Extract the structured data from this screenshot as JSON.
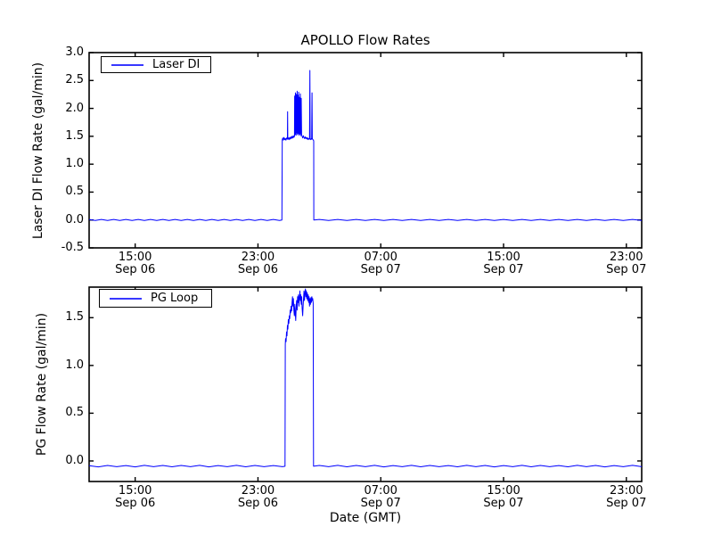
{
  "figure": {
    "title": "APOLLO Flow Rates",
    "background": "#ffffff",
    "accent_line_color": "#0000ff"
  },
  "xaxis": {
    "label": "Date (GMT)",
    "range_hours": [
      0,
      36
    ],
    "origin": "Sep 06 12:00",
    "ticks": [
      {
        "t": 3,
        "time": "15:00",
        "date": "Sep 06"
      },
      {
        "t": 11,
        "time": "23:00",
        "date": "Sep 06"
      },
      {
        "t": 19,
        "time": "07:00",
        "date": "Sep 07"
      },
      {
        "t": 27,
        "time": "15:00",
        "date": "Sep 07"
      },
      {
        "t": 35,
        "time": "23:00",
        "date": "Sep 07"
      }
    ]
  },
  "chart_data": [
    {
      "type": "line",
      "name": "Laser DI",
      "ylabel": "Laser DI Flow Rate (gal/min)",
      "ylim": [
        -0.5,
        3.0
      ],
      "yticks": {
        "values": [
          3.0,
          2.5,
          2.0,
          1.5,
          1.0,
          0.5,
          0.0,
          -0.5
        ],
        "labels": [
          "3.0",
          "2.5",
          "2.0",
          "1.5",
          "1.0",
          "0.5",
          "0.0",
          "-0.5"
        ]
      },
      "line_color": "#0000ff",
      "legend_position": "upper-left",
      "grid": false,
      "points": [
        [
          0,
          0.01
        ],
        [
          0.4,
          -0.01
        ],
        [
          0.8,
          0.01
        ],
        [
          1.2,
          -0.01
        ],
        [
          1.6,
          0.01
        ],
        [
          2,
          -0.01
        ],
        [
          2.4,
          0.01
        ],
        [
          2.8,
          -0.01
        ],
        [
          3.2,
          0.01
        ],
        [
          3.6,
          -0.01
        ],
        [
          4,
          0.01
        ],
        [
          4.4,
          -0.01
        ],
        [
          4.8,
          0.01
        ],
        [
          5.2,
          -0.01
        ],
        [
          5.6,
          0.01
        ],
        [
          6,
          -0.01
        ],
        [
          6.4,
          0.01
        ],
        [
          6.8,
          -0.01
        ],
        [
          7.2,
          0.01
        ],
        [
          7.6,
          -0.01
        ],
        [
          8,
          0.01
        ],
        [
          8.4,
          -0.01
        ],
        [
          8.8,
          0.01
        ],
        [
          9.2,
          -0.01
        ],
        [
          9.6,
          0.01
        ],
        [
          10,
          -0.01
        ],
        [
          10.4,
          0.01
        ],
        [
          10.8,
          -0.01
        ],
        [
          11.2,
          0.01
        ],
        [
          11.6,
          -0.01
        ],
        [
          12,
          0.01
        ],
        [
          12.4,
          -0.01
        ],
        [
          12.56,
          0
        ],
        [
          12.58,
          1.44
        ],
        [
          12.62,
          1.47
        ],
        [
          12.66,
          1.43
        ],
        [
          12.7,
          1.48
        ],
        [
          12.74,
          1.44
        ],
        [
          12.78,
          1.46
        ],
        [
          12.82,
          1.43
        ],
        [
          12.86,
          1.47
        ],
        [
          12.9,
          1.45
        ],
        [
          12.92,
          1.45
        ],
        [
          12.93,
          1.94
        ],
        [
          12.94,
          1.45
        ],
        [
          12.98,
          1.47
        ],
        [
          13.02,
          1.44
        ],
        [
          13.06,
          1.48
        ],
        [
          13.1,
          1.45
        ],
        [
          13.14,
          1.49
        ],
        [
          13.18,
          1.46
        ],
        [
          13.22,
          1.5
        ],
        [
          13.26,
          1.47
        ],
        [
          13.3,
          1.51
        ],
        [
          13.34,
          1.48
        ],
        [
          13.38,
          1.5
        ],
        [
          13.39,
          2.22
        ],
        [
          13.4,
          1.52
        ],
        [
          13.42,
          2.1
        ],
        [
          13.44,
          2.28
        ],
        [
          13.45,
          1.55
        ],
        [
          13.48,
          1.52
        ],
        [
          13.5,
          2.25
        ],
        [
          13.52,
          1.56
        ],
        [
          13.55,
          2.31
        ],
        [
          13.57,
          1.53
        ],
        [
          13.6,
          2.24
        ],
        [
          13.62,
          1.55
        ],
        [
          13.65,
          2.29
        ],
        [
          13.67,
          1.52
        ],
        [
          13.7,
          2.2
        ],
        [
          13.72,
          1.54
        ],
        [
          13.76,
          2.26
        ],
        [
          13.78,
          1.51
        ],
        [
          13.82,
          2.18
        ],
        [
          13.84,
          1.53
        ],
        [
          13.88,
          1.5
        ],
        [
          13.92,
          1.47
        ],
        [
          13.96,
          1.51
        ],
        [
          14,
          1.48
        ],
        [
          14.04,
          1.46
        ],
        [
          14.08,
          1.49
        ],
        [
          14.12,
          1.46
        ],
        [
          14.16,
          1.48
        ],
        [
          14.2,
          1.45
        ],
        [
          14.24,
          1.47
        ],
        [
          14.28,
          1.44
        ],
        [
          14.32,
          1.46
        ],
        [
          14.36,
          1.45
        ],
        [
          14.38,
          2.68
        ],
        [
          14.4,
          1.46
        ],
        [
          14.44,
          1.44
        ],
        [
          14.48,
          1.46
        ],
        [
          14.5,
          1.45
        ],
        [
          14.52,
          2.28
        ],
        [
          14.54,
          1.46
        ],
        [
          14.58,
          1.44
        ],
        [
          14.61,
          1.43
        ],
        [
          14.63,
          1.42
        ],
        [
          14.64,
          0
        ],
        [
          15,
          0.01
        ],
        [
          15.6,
          -0.01
        ],
        [
          16.2,
          0.01
        ],
        [
          16.8,
          -0.01
        ],
        [
          17.4,
          0.01
        ],
        [
          18,
          -0.01
        ],
        [
          18.6,
          0.01
        ],
        [
          19.2,
          -0.01
        ],
        [
          19.8,
          0.01
        ],
        [
          20.4,
          -0.01
        ],
        [
          21,
          0.01
        ],
        [
          21.6,
          -0.01
        ],
        [
          22.2,
          0.01
        ],
        [
          22.8,
          -0.01
        ],
        [
          23.4,
          0.01
        ],
        [
          24,
          -0.01
        ],
        [
          24.6,
          0.01
        ],
        [
          25.2,
          -0.01
        ],
        [
          25.8,
          0.01
        ],
        [
          26.4,
          -0.01
        ],
        [
          27,
          0.01
        ],
        [
          27.6,
          -0.01
        ],
        [
          28.2,
          0.01
        ],
        [
          28.8,
          -0.01
        ],
        [
          29.4,
          0.01
        ],
        [
          30,
          -0.01
        ],
        [
          30.6,
          0.01
        ],
        [
          31.2,
          -0.01
        ],
        [
          31.8,
          0.01
        ],
        [
          32.4,
          -0.01
        ],
        [
          33,
          0.01
        ],
        [
          33.6,
          -0.01
        ],
        [
          34.2,
          0.01
        ],
        [
          34.8,
          -0.01
        ],
        [
          35.4,
          0.01
        ],
        [
          36,
          -0.01
        ]
      ]
    },
    {
      "type": "line",
      "name": "PG Loop",
      "ylabel": "PG Flow Rate (gal/min)",
      "ylim": [
        -0.215,
        1.82
      ],
      "yticks": {
        "values": [
          1.5,
          1.0,
          0.5,
          0.0
        ],
        "labels": [
          "1.5",
          "1.0",
          "0.5",
          "0.0"
        ]
      },
      "line_color": "#0000ff",
      "legend_position": "upper-left",
      "grid": false,
      "points": [
        [
          0,
          -0.05
        ],
        [
          0.6,
          -0.062
        ],
        [
          1.2,
          -0.047
        ],
        [
          1.8,
          -0.06
        ],
        [
          2.4,
          -0.048
        ],
        [
          3,
          -0.062
        ],
        [
          3.6,
          -0.046
        ],
        [
          4.2,
          -0.06
        ],
        [
          4.8,
          -0.047
        ],
        [
          5.4,
          -0.061
        ],
        [
          6,
          -0.047
        ],
        [
          6.6,
          -0.06
        ],
        [
          7.2,
          -0.046
        ],
        [
          7.8,
          -0.062
        ],
        [
          8.4,
          -0.048
        ],
        [
          9,
          -0.06
        ],
        [
          9.6,
          -0.046
        ],
        [
          10.2,
          -0.061
        ],
        [
          10.8,
          -0.047
        ],
        [
          11.4,
          -0.06
        ],
        [
          12,
          -0.048
        ],
        [
          12.6,
          -0.06
        ],
        [
          12.76,
          -0.055
        ],
        [
          12.78,
          1.22
        ],
        [
          12.8,
          1.28
        ],
        [
          12.83,
          1.25
        ],
        [
          12.86,
          1.35
        ],
        [
          12.89,
          1.31
        ],
        [
          12.92,
          1.42
        ],
        [
          12.95,
          1.38
        ],
        [
          12.98,
          1.48
        ],
        [
          13.01,
          1.44
        ],
        [
          13.04,
          1.52
        ],
        [
          13.07,
          1.49
        ],
        [
          13.1,
          1.58
        ],
        [
          13.13,
          1.55
        ],
        [
          13.16,
          1.62
        ],
        [
          13.19,
          1.57
        ],
        [
          13.22,
          1.66
        ],
        [
          13.25,
          1.72
        ],
        [
          13.28,
          1.62
        ],
        [
          13.31,
          1.7
        ],
        [
          13.34,
          1.58
        ],
        [
          13.37,
          1.52
        ],
        [
          13.4,
          1.64
        ],
        [
          13.43,
          1.55
        ],
        [
          13.46,
          1.47
        ],
        [
          13.49,
          1.6
        ],
        [
          13.52,
          1.68
        ],
        [
          13.55,
          1.58
        ],
        [
          13.58,
          1.72
        ],
        [
          13.61,
          1.66
        ],
        [
          13.64,
          1.74
        ],
        [
          13.67,
          1.62
        ],
        [
          13.7,
          1.7
        ],
        [
          13.73,
          1.78
        ],
        [
          13.76,
          1.68
        ],
        [
          13.79,
          1.74
        ],
        [
          13.82,
          1.64
        ],
        [
          13.85,
          1.72
        ],
        [
          13.88,
          1.6
        ],
        [
          13.91,
          1.52
        ],
        [
          13.94,
          1.62
        ],
        [
          13.97,
          1.7
        ],
        [
          14,
          1.78
        ],
        [
          14.03,
          1.68
        ],
        [
          14.06,
          1.75
        ],
        [
          14.09,
          1.8
        ],
        [
          14.12,
          1.72
        ],
        [
          14.15,
          1.78
        ],
        [
          14.18,
          1.7
        ],
        [
          14.21,
          1.76
        ],
        [
          14.24,
          1.68
        ],
        [
          14.27,
          1.74
        ],
        [
          14.3,
          1.66
        ],
        [
          14.33,
          1.72
        ],
        [
          14.36,
          1.62
        ],
        [
          14.39,
          1.7
        ],
        [
          14.42,
          1.64
        ],
        [
          14.45,
          1.71
        ],
        [
          14.48,
          1.66
        ],
        [
          14.51,
          1.72
        ],
        [
          14.54,
          1.68
        ],
        [
          14.57,
          1.7
        ],
        [
          14.6,
          1.65
        ],
        [
          14.62,
          -0.055
        ],
        [
          15,
          -0.047
        ],
        [
          15.6,
          -0.06
        ],
        [
          16.2,
          -0.046
        ],
        [
          16.8,
          -0.061
        ],
        [
          17.4,
          -0.047
        ],
        [
          18,
          -0.06
        ],
        [
          18.6,
          -0.046
        ],
        [
          19.2,
          -0.062
        ],
        [
          19.8,
          -0.048
        ],
        [
          20.4,
          -0.06
        ],
        [
          21,
          -0.046
        ],
        [
          21.6,
          -0.061
        ],
        [
          22.2,
          -0.047
        ],
        [
          22.8,
          -0.06
        ],
        [
          23.4,
          -0.048
        ],
        [
          24,
          -0.061
        ],
        [
          24.6,
          -0.046
        ],
        [
          25.2,
          -0.06
        ],
        [
          25.8,
          -0.047
        ],
        [
          26.4,
          -0.062
        ],
        [
          27,
          -0.048
        ],
        [
          27.6,
          -0.06
        ],
        [
          28.2,
          -0.046
        ],
        [
          28.8,
          -0.061
        ],
        [
          29.4,
          -0.047
        ],
        [
          30,
          -0.06
        ],
        [
          30.6,
          -0.048
        ],
        [
          31.2,
          -0.061
        ],
        [
          31.8,
          -0.046
        ],
        [
          32.4,
          -0.06
        ],
        [
          33,
          -0.047
        ],
        [
          33.6,
          -0.062
        ],
        [
          34.2,
          -0.048
        ],
        [
          34.8,
          -0.06
        ],
        [
          35.4,
          -0.046
        ],
        [
          36,
          -0.06
        ]
      ]
    }
  ],
  "legends": [
    {
      "label": "Laser DI"
    },
    {
      "label": "PG Loop"
    }
  ]
}
